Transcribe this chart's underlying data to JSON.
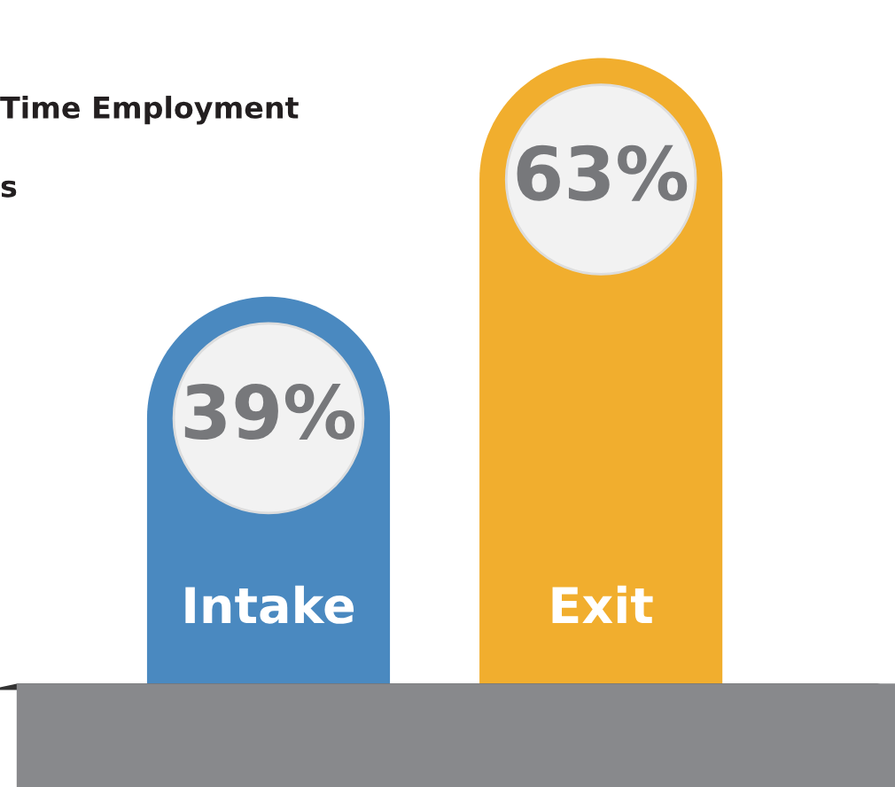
{
  "chart_data": {
    "type": "bar",
    "title": "Time Employment",
    "subtitle": "s",
    "categories": [
      "Intake",
      "Exit"
    ],
    "values": [
      39,
      63
    ],
    "value_labels": [
      "39%",
      "63%"
    ],
    "colors": [
      "#4a89c0",
      "#f1ae2e"
    ]
  }
}
